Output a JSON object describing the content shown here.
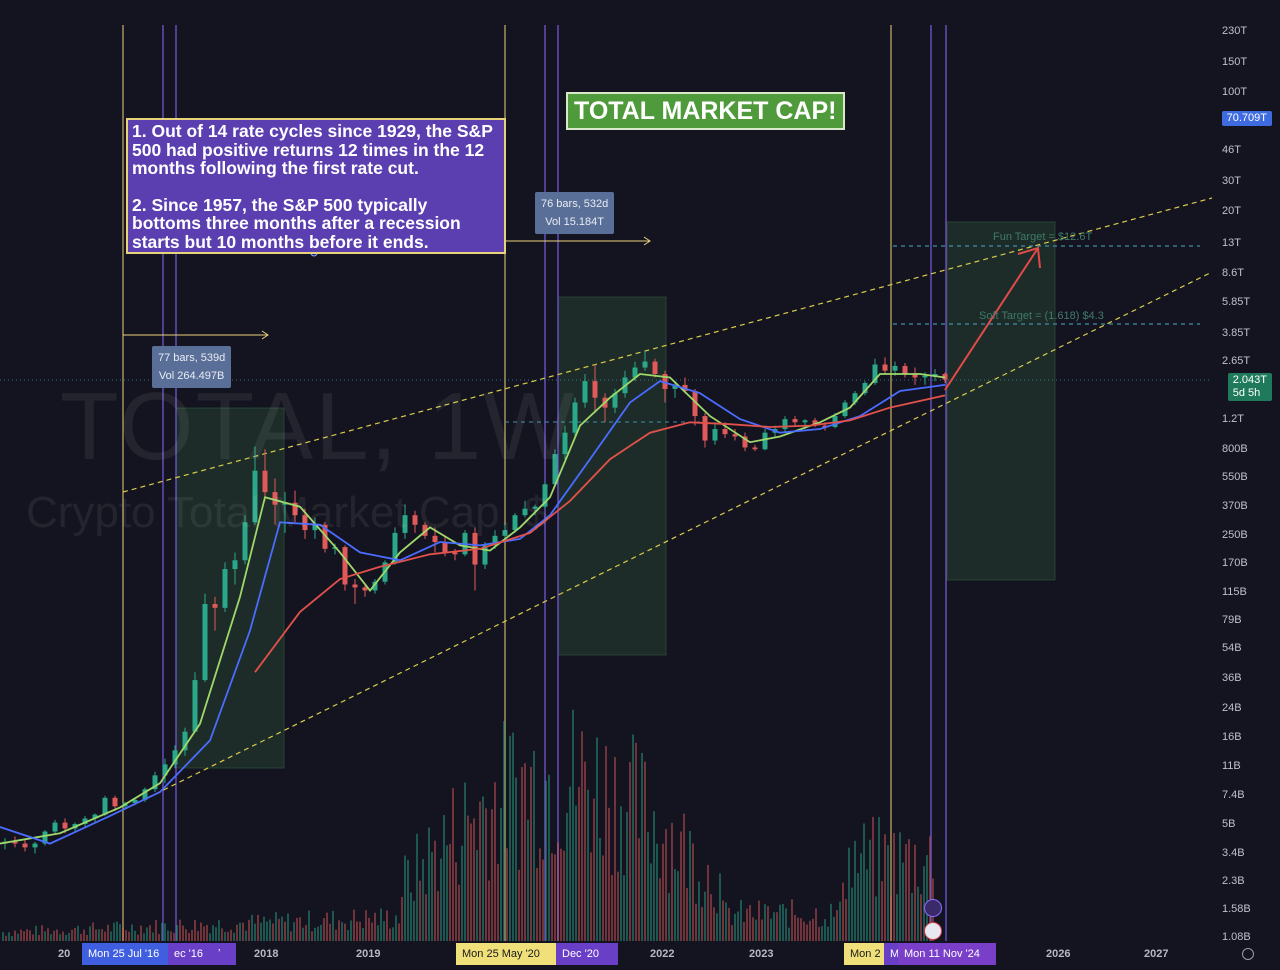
{
  "chart_data": {
    "type": "candlestick",
    "title": "TOTAL MARKET CAP!",
    "watermark_symbol": "TOTAL, 1W",
    "watermark_name": "Crypto Total Market Cap, $",
    "y_scale": "log",
    "x_labels": [
      "2018",
      "2019",
      "2022",
      "2023",
      "2026",
      "2027"
    ],
    "x_label_first_partial": "20",
    "y_tick_labels": [
      "230T",
      "150T",
      "100T",
      "46T",
      "30T",
      "20T",
      "13T",
      "8.6T",
      "5.85T",
      "3.85T",
      "2.65T",
      "1.2T",
      "800B",
      "550B",
      "370B",
      "250B",
      "170B",
      "115B",
      "79B",
      "54B",
      "36B",
      "24B",
      "16B",
      "11B",
      "7.4B",
      "5B",
      "3.4B",
      "2.3B",
      "1.58B",
      "1.08B"
    ],
    "price_labels": [
      {
        "value": "70.709T",
        "color": "#3f6be0"
      },
      {
        "value": "2.043T",
        "subtext": "5d 5h",
        "color": "#1f7a5c"
      }
    ],
    "time_chips": [
      {
        "label": "Mon 25 Jul '16",
        "color": "#3f5fe0"
      },
      {
        "label": "ec '16",
        "color": "#6a3fc8"
      },
      {
        "label": "Mon 25 May '20",
        "color": "#f0e07a"
      },
      {
        "label": "Dec '20",
        "color": "#6a3fc8"
      },
      {
        "label": "Mon 2",
        "color": "#f0e07a"
      },
      {
        "label": "M",
        "color": "#6a3fc8"
      },
      {
        "label": "Mon 11 Nov '24",
        "color": "#7a3fc8"
      }
    ],
    "annotations": [
      {
        "text": "77 bars, 539d",
        "sub": "Vol 264.497B"
      },
      {
        "text": "76 bars, 532d",
        "sub": "Vol 15.184T"
      }
    ],
    "targets": [
      {
        "label": "Fun Target = $12.6T"
      },
      {
        "label": "Soft Target = (1.618) $4.3"
      }
    ],
    "note_lines": [
      "1. Out of 14 rate cycles since 1929, the S&P 500 had positive returns 12 times in the 12 months following the first rate cut.",
      "2. Since 1957, the S&P 500 typically bottoms three months after a recession starts but 10 months before it ends."
    ],
    "colors": {
      "background": "#141420",
      "candle_up": "#2aa889",
      "candle_down": "#e05a5a",
      "ma_fast": "#9fd86a",
      "ma_mid": "#4a6cff",
      "ma_slow": "#e2514a",
      "vertical_yellow": "#e8d27a",
      "vertical_purple": "#7a5ce0",
      "channel_line": "#d8cc4a",
      "target_line": "#3f8fa8",
      "projection_arrow": "#e24a4a",
      "range_box": "#2f5a3a"
    },
    "series": [
      {
        "name": "Weekly candles",
        "values": [
          [
            2015.45,
            4.0,
            4.3,
            3.7,
            4.1
          ],
          [
            2015.55,
            4.1,
            4.4,
            3.8,
            4.0
          ],
          [
            2015.65,
            4.0,
            4.2,
            3.6,
            3.8
          ],
          [
            2015.75,
            3.8,
            4.1,
            3.5,
            4.0
          ],
          [
            2015.85,
            4.0,
            4.8,
            3.9,
            4.7
          ],
          [
            2015.95,
            4.7,
            5.5,
            4.5,
            5.3
          ],
          [
            2016.05,
            5.3,
            5.6,
            4.6,
            4.9
          ],
          [
            2016.15,
            4.9,
            5.3,
            4.7,
            5.2
          ],
          [
            2016.25,
            5.2,
            5.8,
            5.0,
            5.6
          ],
          [
            2016.35,
            5.6,
            6.0,
            5.3,
            5.9
          ],
          [
            2016.45,
            5.9,
            7.6,
            5.8,
            7.4
          ],
          [
            2016.55,
            7.4,
            7.6,
            6.2,
            6.6
          ],
          [
            2016.65,
            6.6,
            7.0,
            6.3,
            6.9
          ],
          [
            2016.75,
            6.9,
            7.3,
            6.7,
            7.2
          ],
          [
            2016.85,
            7.2,
            8.5,
            7.0,
            8.3
          ],
          [
            2016.95,
            8.3,
            10.5,
            8.0,
            10.0
          ],
          [
            2017.05,
            10.0,
            12.5,
            9.0,
            11.6
          ],
          [
            2017.15,
            11.6,
            15,
            11,
            14
          ],
          [
            2017.25,
            14,
            19,
            13,
            18
          ],
          [
            2017.35,
            18,
            40,
            18,
            36
          ],
          [
            2017.45,
            36,
            115,
            35,
            100
          ],
          [
            2017.55,
            100,
            110,
            70,
            95
          ],
          [
            2017.65,
            95,
            175,
            90,
            160
          ],
          [
            2017.75,
            160,
            200,
            130,
            180
          ],
          [
            2017.85,
            180,
            330,
            170,
            300
          ],
          [
            2017.95,
            300,
            830,
            290,
            600
          ],
          [
            2018.05,
            600,
            800,
            400,
            450
          ],
          [
            2018.15,
            450,
            540,
            290,
            380
          ],
          [
            2018.25,
            380,
            450,
            260,
            390
          ],
          [
            2018.35,
            390,
            460,
            300,
            330
          ],
          [
            2018.45,
            330,
            360,
            240,
            270
          ],
          [
            2018.55,
            270,
            320,
            240,
            290
          ],
          [
            2018.65,
            290,
            300,
            200,
            210
          ],
          [
            2018.75,
            210,
            225,
            195,
            215
          ],
          [
            2018.85,
            215,
            220,
            120,
            130
          ],
          [
            2018.95,
            130,
            140,
            100,
            125
          ],
          [
            2019.05,
            125,
            130,
            110,
            120
          ],
          [
            2019.15,
            120,
            140,
            115,
            135
          ],
          [
            2019.25,
            135,
            180,
            130,
            175
          ],
          [
            2019.35,
            175,
            280,
            170,
            260
          ],
          [
            2019.45,
            260,
            380,
            240,
            330
          ],
          [
            2019.55,
            330,
            350,
            260,
            290
          ],
          [
            2019.65,
            290,
            300,
            240,
            250
          ],
          [
            2019.75,
            250,
            280,
            200,
            230
          ],
          [
            2019.85,
            230,
            250,
            190,
            200
          ],
          [
            2019.95,
            200,
            210,
            180,
            195
          ],
          [
            2020.05,
            195,
            270,
            190,
            260
          ],
          [
            2020.15,
            260,
            280,
            120,
            170
          ],
          [
            2020.25,
            170,
            230,
            160,
            220
          ],
          [
            2020.35,
            220,
            270,
            210,
            250
          ],
          [
            2020.45,
            250,
            290,
            240,
            270
          ],
          [
            2020.55,
            270,
            340,
            260,
            330
          ],
          [
            2020.65,
            330,
            400,
            320,
            360
          ],
          [
            2020.75,
            360,
            380,
            330,
            370
          ],
          [
            2020.85,
            370,
            520,
            360,
            500
          ],
          [
            2020.95,
            500,
            800,
            480,
            750
          ],
          [
            2021.05,
            750,
            1100,
            700,
            1000
          ],
          [
            2021.15,
            1000,
            1600,
            950,
            1500
          ],
          [
            2021.25,
            1500,
            2200,
            1400,
            2000
          ],
          [
            2021.35,
            2000,
            2500,
            1300,
            1600
          ],
          [
            2021.45,
            1600,
            1700,
            1150,
            1400
          ],
          [
            2021.55,
            1400,
            1800,
            1300,
            1700
          ],
          [
            2021.65,
            1700,
            2300,
            1600,
            2100
          ],
          [
            2021.75,
            2100,
            2600,
            2000,
            2400
          ],
          [
            2021.85,
            2400,
            3000,
            2300,
            2600
          ],
          [
            2021.95,
            2600,
            2700,
            2100,
            2200
          ],
          [
            2022.05,
            2200,
            2300,
            1500,
            1800
          ],
          [
            2022.15,
            1800,
            2000,
            1600,
            1900
          ],
          [
            2022.25,
            1900,
            2100,
            1700,
            1750
          ],
          [
            2022.35,
            1750,
            1800,
            1100,
            1250
          ],
          [
            2022.45,
            1250,
            1300,
            820,
            900
          ],
          [
            2022.55,
            900,
            1150,
            850,
            1050
          ],
          [
            2022.65,
            1050,
            1150,
            930,
            980
          ],
          [
            2022.75,
            980,
            1050,
            900,
            950
          ],
          [
            2022.85,
            950,
            1000,
            780,
            820
          ],
          [
            2022.95,
            820,
            850,
            780,
            800
          ],
          [
            2023.05,
            800,
            1050,
            790,
            1000
          ],
          [
            2023.15,
            1000,
            1100,
            950,
            1050
          ],
          [
            2023.25,
            1050,
            1250,
            1000,
            1200
          ],
          [
            2023.35,
            1200,
            1250,
            1100,
            1150
          ],
          [
            2023.45,
            1150,
            1200,
            1050,
            1180
          ],
          [
            2023.55,
            1180,
            1220,
            1080,
            1100
          ],
          [
            2023.65,
            1100,
            1150,
            1030,
            1080
          ],
          [
            2023.75,
            1080,
            1300,
            1060,
            1250
          ],
          [
            2023.85,
            1250,
            1550,
            1220,
            1500
          ],
          [
            2023.95,
            1500,
            1750,
            1450,
            1700
          ],
          [
            2024.05,
            1700,
            2000,
            1650,
            1950
          ],
          [
            2024.15,
            1950,
            2700,
            1900,
            2500
          ],
          [
            2024.25,
            2500,
            2750,
            2200,
            2300
          ],
          [
            2024.35,
            2300,
            2600,
            2150,
            2450
          ],
          [
            2024.45,
            2450,
            2550,
            2100,
            2200
          ],
          [
            2024.55,
            2200,
            2400,
            1900,
            2100
          ],
          [
            2024.65,
            2100,
            2250,
            1900,
            2150
          ],
          [
            2024.75,
            2150,
            2350,
            2000,
            2200
          ],
          [
            2024.85,
            2200,
            2250,
            1950,
            2043
          ]
        ]
      },
      {
        "name": "MA fast",
        "values": [
          [
            2015.4,
            4.0
          ],
          [
            2016.0,
            4.6
          ],
          [
            2016.6,
            6.5
          ],
          [
            2017.0,
            9
          ],
          [
            2017.4,
            20
          ],
          [
            2017.8,
            110
          ],
          [
            2018.05,
            420
          ],
          [
            2018.4,
            370
          ],
          [
            2018.8,
            200
          ],
          [
            2019.1,
            120
          ],
          [
            2019.4,
            200
          ],
          [
            2019.7,
            280
          ],
          [
            2020.0,
            220
          ],
          [
            2020.3,
            205
          ],
          [
            2020.6,
            280
          ],
          [
            2020.9,
            420
          ],
          [
            2021.2,
            1100
          ],
          [
            2021.5,
            1600
          ],
          [
            2021.8,
            2200
          ],
          [
            2022.1,
            2100
          ],
          [
            2022.5,
            1250
          ],
          [
            2022.9,
            880
          ],
          [
            2023.2,
            950
          ],
          [
            2023.6,
            1150
          ],
          [
            2023.9,
            1400
          ],
          [
            2024.2,
            2200
          ],
          [
            2024.6,
            2200
          ],
          [
            2024.85,
            2100
          ]
        ]
      },
      {
        "name": "MA mid",
        "values": [
          [
            2015.4,
            5.0
          ],
          [
            2015.9,
            4.0
          ],
          [
            2016.5,
            5.8
          ],
          [
            2017.0,
            8
          ],
          [
            2017.5,
            16
          ],
          [
            2017.9,
            70
          ],
          [
            2018.2,
            300
          ],
          [
            2018.6,
            290
          ],
          [
            2019.0,
            200
          ],
          [
            2019.4,
            180
          ],
          [
            2019.8,
            230
          ],
          [
            2020.2,
            220
          ],
          [
            2020.6,
            240
          ],
          [
            2020.9,
            330
          ],
          [
            2021.3,
            700
          ],
          [
            2021.7,
            1500
          ],
          [
            2022.0,
            2000
          ],
          [
            2022.4,
            1700
          ],
          [
            2022.8,
            1200
          ],
          [
            2023.2,
            1000
          ],
          [
            2023.6,
            1050
          ],
          [
            2024.0,
            1250
          ],
          [
            2024.4,
            1750
          ],
          [
            2024.85,
            1900
          ]
        ]
      },
      {
        "name": "MA slow",
        "values": [
          [
            2017.95,
            40
          ],
          [
            2018.4,
            90
          ],
          [
            2018.8,
            140
          ],
          [
            2019.2,
            165
          ],
          [
            2019.7,
            195
          ],
          [
            2020.2,
            210
          ],
          [
            2020.7,
            260
          ],
          [
            2021.1,
            400
          ],
          [
            2021.5,
            700
          ],
          [
            2021.9,
            1000
          ],
          [
            2022.3,
            1150
          ],
          [
            2022.7,
            1120
          ],
          [
            2023.1,
            1080
          ],
          [
            2023.5,
            1100
          ],
          [
            2023.9,
            1180
          ],
          [
            2024.3,
            1400
          ],
          [
            2024.85,
            1650
          ]
        ]
      }
    ]
  }
}
